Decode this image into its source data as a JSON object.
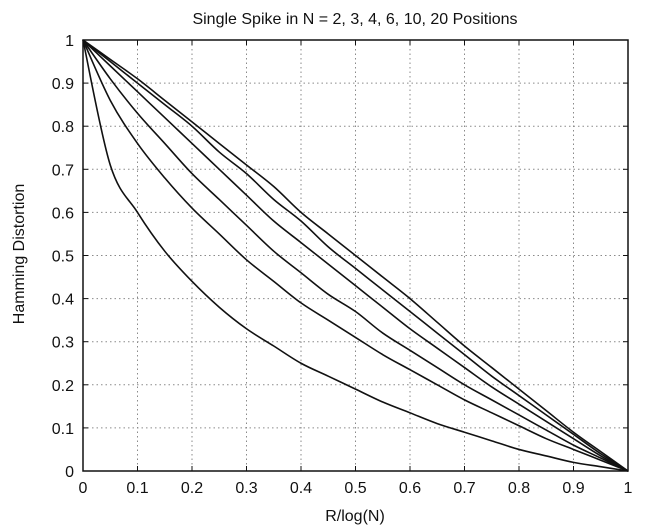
{
  "chart_data": {
    "type": "line",
    "title": "Single Spike in N = 2, 3, 4, 6, 10, 20 Positions",
    "xlabel": "R/log(N)",
    "ylabel": "Hamming Distortion",
    "xlim": [
      0,
      1
    ],
    "ylim": [
      0,
      1
    ],
    "xticks": [
      0,
      0.1,
      0.2,
      0.3,
      0.4,
      0.5,
      0.6,
      0.7,
      0.8,
      0.9,
      1
    ],
    "yticks": [
      0,
      0.1,
      0.2,
      0.3,
      0.4,
      0.5,
      0.6,
      0.7,
      0.8,
      0.9,
      1
    ],
    "xtick_labels": [
      "0",
      "0.1",
      "0.2",
      "0.3",
      "0.4",
      "0.5",
      "0.6",
      "0.7",
      "0.8",
      "0.9",
      "1"
    ],
    "ytick_labels": [
      "0",
      "0.1",
      "0.2",
      "0.3",
      "0.4",
      "0.5",
      "0.6",
      "0.7",
      "0.8",
      "0.9",
      "1"
    ],
    "grid": true,
    "line_color": "#111111",
    "grid_color": "#8a8a8a",
    "x": [
      0,
      0.05,
      0.1,
      0.15,
      0.2,
      0.25,
      0.3,
      0.35,
      0.4,
      0.45,
      0.5,
      0.55,
      0.6,
      0.65,
      0.7,
      0.75,
      0.8,
      0.85,
      0.9,
      0.95,
      1
    ],
    "series": [
      {
        "values": [
          1,
          0.71,
          0.6,
          0.51,
          0.44,
          0.38,
          0.33,
          0.29,
          0.25,
          0.22,
          0.19,
          0.16,
          0.135,
          0.11,
          0.09,
          0.07,
          0.05,
          0.035,
          0.02,
          0.01,
          0
        ]
      },
      {
        "values": [
          1,
          0.86,
          0.76,
          0.68,
          0.61,
          0.55,
          0.49,
          0.44,
          0.39,
          0.35,
          0.31,
          0.27,
          0.235,
          0.2,
          0.165,
          0.135,
          0.105,
          0.075,
          0.05,
          0.025,
          0
        ]
      },
      {
        "values": [
          1,
          0.91,
          0.83,
          0.76,
          0.69,
          0.63,
          0.57,
          0.51,
          0.46,
          0.41,
          0.37,
          0.32,
          0.28,
          0.24,
          0.2,
          0.165,
          0.13,
          0.095,
          0.06,
          0.03,
          0
        ]
      },
      {
        "values": [
          1,
          0.94,
          0.88,
          0.82,
          0.76,
          0.7,
          0.64,
          0.58,
          0.53,
          0.48,
          0.43,
          0.38,
          0.33,
          0.285,
          0.24,
          0.195,
          0.155,
          0.115,
          0.075,
          0.035,
          0
        ]
      },
      {
        "values": [
          1,
          0.95,
          0.9,
          0.85,
          0.8,
          0.74,
          0.69,
          0.63,
          0.58,
          0.52,
          0.47,
          0.42,
          0.37,
          0.32,
          0.27,
          0.22,
          0.175,
          0.13,
          0.085,
          0.04,
          0
        ]
      },
      {
        "values": [
          1,
          0.955,
          0.91,
          0.86,
          0.81,
          0.76,
          0.71,
          0.66,
          0.6,
          0.55,
          0.5,
          0.45,
          0.4,
          0.345,
          0.29,
          0.24,
          0.19,
          0.14,
          0.09,
          0.045,
          0
        ]
      }
    ]
  }
}
